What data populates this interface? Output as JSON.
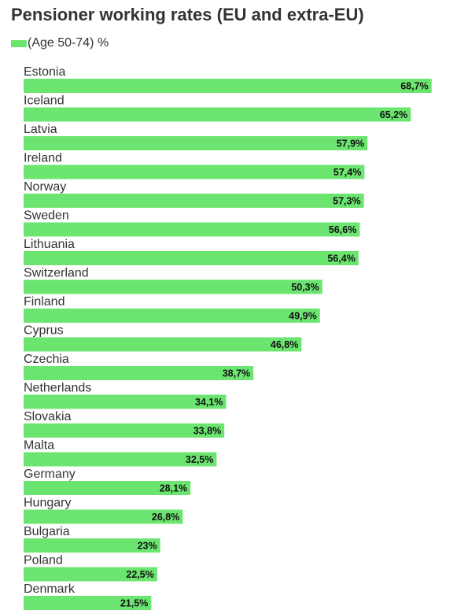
{
  "title": "Pensioner working rates (EU and extra-EU)",
  "colors": {
    "bar": "#6ce570",
    "text": "#333333"
  },
  "chart_data": {
    "type": "bar",
    "orientation": "horizontal",
    "title": "Pensioner working rates (EU and extra-EU)",
    "categories": [
      "Estonia",
      "Iceland",
      "Latvia",
      "Ireland",
      "Norway",
      "Sweden",
      "Lithuania",
      "Switzerland",
      "Finland",
      "Cyprus",
      "Czechia",
      "Netherlands",
      "Slovakia",
      "Malta",
      "Germany",
      "Hungary",
      "Bulgaria",
      "Poland",
      "Denmark"
    ],
    "series": [
      {
        "name": "(Age 50-74) %",
        "values": [
          68.7,
          65.2,
          57.9,
          57.4,
          57.3,
          56.6,
          56.4,
          50.3,
          49.9,
          46.8,
          38.7,
          34.1,
          33.8,
          32.5,
          28.1,
          26.8,
          23,
          22.5,
          21.5
        ],
        "labels": [
          "68,7%",
          "65,2%",
          "57,9%",
          "57,4%",
          "57,3%",
          "56,6%",
          "56,4%",
          "50,3%",
          "49,9%",
          "46,8%",
          "38,7%",
          "34,1%",
          "33,8%",
          "32,5%",
          "28,1%",
          "26,8%",
          "23%",
          "22,5%",
          "21,5%"
        ]
      }
    ],
    "legend": "top-left",
    "grid": false
  }
}
